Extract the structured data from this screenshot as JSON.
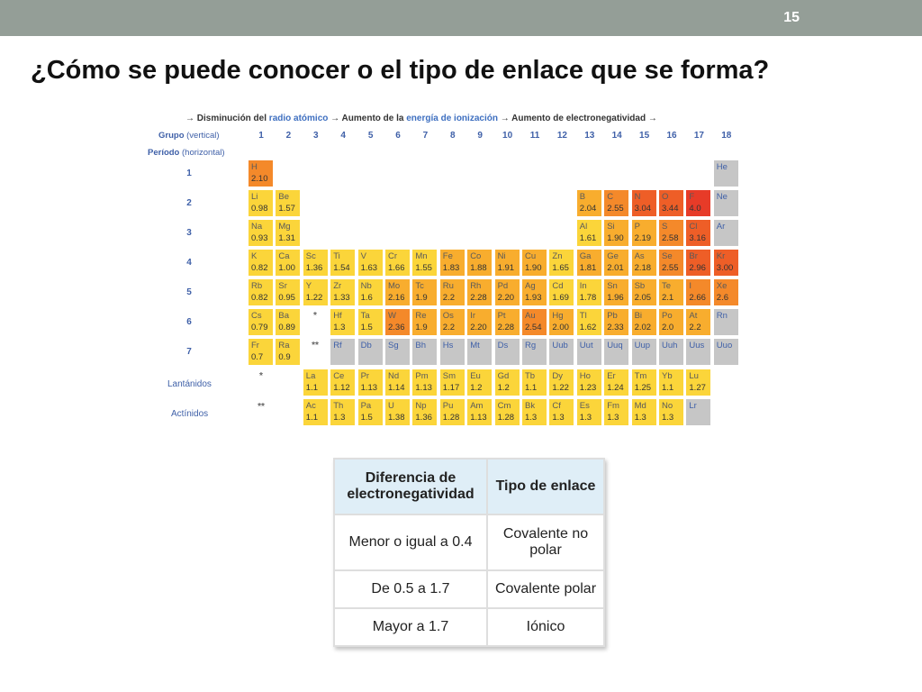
{
  "slide": {
    "number": "15",
    "title": "¿Cómo se puede conocer o el tipo de enlace que se forma?"
  },
  "periodic_table": {
    "header": {
      "a1": "→ Disminución del ",
      "a2": "radio atómico",
      "a3": " → Aumento de la ",
      "a4": "energía de ionización",
      "a5": " → Aumento de electronegatividad →"
    },
    "grupo_label": "Grupo",
    "grupo_note": "(vertical)",
    "periodo_label": "Período",
    "periodo_note": "(horizontal)",
    "groups": [
      "1",
      "2",
      "3",
      "4",
      "5",
      "6",
      "7",
      "8",
      "9",
      "10",
      "11",
      "12",
      "13",
      "14",
      "15",
      "16",
      "17",
      "18"
    ],
    "periods": [
      "1",
      "2",
      "3",
      "4",
      "5",
      "6",
      "7"
    ],
    "lanthanides_label": "Lantánidos",
    "actinides_label": "Actínidos",
    "star_single": "*",
    "star_double": "**",
    "colors": {
      "yellow": "#fbd53a",
      "light_orange": "#f8ad2e",
      "orange": "#f4892a",
      "dark_orange": "#ee5e27",
      "red": "#e73b28",
      "gray": "#c6c6c6"
    },
    "elements": [
      {
        "s": "H",
        "v": "2.10",
        "g": 1,
        "p": 1,
        "c": "orange"
      },
      {
        "s": "He",
        "v": "",
        "g": 18,
        "p": 1,
        "c": "gray"
      },
      {
        "s": "Li",
        "v": "0.98",
        "g": 1,
        "p": 2,
        "c": "yellow"
      },
      {
        "s": "Be",
        "v": "1.57",
        "g": 2,
        "p": 2,
        "c": "yellow"
      },
      {
        "s": "B",
        "v": "2.04",
        "g": 13,
        "p": 2,
        "c": "light_orange"
      },
      {
        "s": "C",
        "v": "2.55",
        "g": 14,
        "p": 2,
        "c": "orange"
      },
      {
        "s": "N",
        "v": "3.04",
        "g": 15,
        "p": 2,
        "c": "dark_orange"
      },
      {
        "s": "O",
        "v": "3.44",
        "g": 16,
        "p": 2,
        "c": "dark_orange"
      },
      {
        "s": "F",
        "v": "4.0",
        "g": 17,
        "p": 2,
        "c": "red"
      },
      {
        "s": "Ne",
        "v": "",
        "g": 18,
        "p": 2,
        "c": "gray"
      },
      {
        "s": "Na",
        "v": "0.93",
        "g": 1,
        "p": 3,
        "c": "yellow"
      },
      {
        "s": "Mg",
        "v": "1.31",
        "g": 2,
        "p": 3,
        "c": "yellow"
      },
      {
        "s": "Al",
        "v": "1.61",
        "g": 13,
        "p": 3,
        "c": "yellow"
      },
      {
        "s": "Si",
        "v": "1.90",
        "g": 14,
        "p": 3,
        "c": "light_orange"
      },
      {
        "s": "P",
        "v": "2.19",
        "g": 15,
        "p": 3,
        "c": "light_orange"
      },
      {
        "s": "S",
        "v": "2.58",
        "g": 16,
        "p": 3,
        "c": "orange"
      },
      {
        "s": "Cl",
        "v": "3.16",
        "g": 17,
        "p": 3,
        "c": "dark_orange"
      },
      {
        "s": "Ar",
        "v": "",
        "g": 18,
        "p": 3,
        "c": "gray"
      },
      {
        "s": "K",
        "v": "0.82",
        "g": 1,
        "p": 4,
        "c": "yellow"
      },
      {
        "s": "Ca",
        "v": "1.00",
        "g": 2,
        "p": 4,
        "c": "yellow"
      },
      {
        "s": "Sc",
        "v": "1.36",
        "g": 3,
        "p": 4,
        "c": "yellow"
      },
      {
        "s": "Ti",
        "v": "1.54",
        "g": 4,
        "p": 4,
        "c": "yellow"
      },
      {
        "s": "V",
        "v": "1.63",
        "g": 5,
        "p": 4,
        "c": "yellow"
      },
      {
        "s": "Cr",
        "v": "1.66",
        "g": 6,
        "p": 4,
        "c": "yellow"
      },
      {
        "s": "Mn",
        "v": "1.55",
        "g": 7,
        "p": 4,
        "c": "yellow"
      },
      {
        "s": "Fe",
        "v": "1.83",
        "g": 8,
        "p": 4,
        "c": "light_orange"
      },
      {
        "s": "Co",
        "v": "1.88",
        "g": 9,
        "p": 4,
        "c": "light_orange"
      },
      {
        "s": "Ni",
        "v": "1.91",
        "g": 10,
        "p": 4,
        "c": "light_orange"
      },
      {
        "s": "Cu",
        "v": "1.90",
        "g": 11,
        "p": 4,
        "c": "light_orange"
      },
      {
        "s": "Zn",
        "v": "1.65",
        "g": 12,
        "p": 4,
        "c": "yellow"
      },
      {
        "s": "Ga",
        "v": "1.81",
        "g": 13,
        "p": 4,
        "c": "light_orange"
      },
      {
        "s": "Ge",
        "v": "2.01",
        "g": 14,
        "p": 4,
        "c": "light_orange"
      },
      {
        "s": "As",
        "v": "2.18",
        "g": 15,
        "p": 4,
        "c": "light_orange"
      },
      {
        "s": "Se",
        "v": "2.55",
        "g": 16,
        "p": 4,
        "c": "orange"
      },
      {
        "s": "Br",
        "v": "2.96",
        "g": 17,
        "p": 4,
        "c": "dark_orange"
      },
      {
        "s": "Kr",
        "v": "3.00",
        "g": 18,
        "p": 4,
        "c": "dark_orange"
      },
      {
        "s": "Rb",
        "v": "0.82",
        "g": 1,
        "p": 5,
        "c": "yellow"
      },
      {
        "s": "Sr",
        "v": "0.95",
        "g": 2,
        "p": 5,
        "c": "yellow"
      },
      {
        "s": "Y",
        "v": "1.22",
        "g": 3,
        "p": 5,
        "c": "yellow"
      },
      {
        "s": "Zr",
        "v": "1.33",
        "g": 4,
        "p": 5,
        "c": "yellow"
      },
      {
        "s": "Nb",
        "v": "1.6",
        "g": 5,
        "p": 5,
        "c": "yellow"
      },
      {
        "s": "Mo",
        "v": "2.16",
        "g": 6,
        "p": 5,
        "c": "light_orange"
      },
      {
        "s": "Tc",
        "v": "1.9",
        "g": 7,
        "p": 5,
        "c": "light_orange"
      },
      {
        "s": "Ru",
        "v": "2.2",
        "g": 8,
        "p": 5,
        "c": "light_orange"
      },
      {
        "s": "Rh",
        "v": "2.28",
        "g": 9,
        "p": 5,
        "c": "light_orange"
      },
      {
        "s": "Pd",
        "v": "2.20",
        "g": 10,
        "p": 5,
        "c": "light_orange"
      },
      {
        "s": "Ag",
        "v": "1.93",
        "g": 11,
        "p": 5,
        "c": "light_orange"
      },
      {
        "s": "Cd",
        "v": "1.69",
        "g": 12,
        "p": 5,
        "c": "yellow"
      },
      {
        "s": "In",
        "v": "1.78",
        "g": 13,
        "p": 5,
        "c": "yellow"
      },
      {
        "s": "Sn",
        "v": "1.96",
        "g": 14,
        "p": 5,
        "c": "light_orange"
      },
      {
        "s": "Sb",
        "v": "2.05",
        "g": 15,
        "p": 5,
        "c": "light_orange"
      },
      {
        "s": "Te",
        "v": "2.1",
        "g": 16,
        "p": 5,
        "c": "light_orange"
      },
      {
        "s": "I",
        "v": "2.66",
        "g": 17,
        "p": 5,
        "c": "orange"
      },
      {
        "s": "Xe",
        "v": "2.6",
        "g": 18,
        "p": 5,
        "c": "orange"
      },
      {
        "s": "Cs",
        "v": "0.79",
        "g": 1,
        "p": 6,
        "c": "yellow"
      },
      {
        "s": "Ba",
        "v": "0.89",
        "g": 2,
        "p": 6,
        "c": "yellow"
      },
      {
        "s": "Hf",
        "v": "1.3",
        "g": 4,
        "p": 6,
        "c": "yellow"
      },
      {
        "s": "Ta",
        "v": "1.5",
        "g": 5,
        "p": 6,
        "c": "yellow"
      },
      {
        "s": "W",
        "v": "2.36",
        "g": 6,
        "p": 6,
        "c": "orange"
      },
      {
        "s": "Re",
        "v": "1.9",
        "g": 7,
        "p": 6,
        "c": "light_orange"
      },
      {
        "s": "Os",
        "v": "2.2",
        "g": 8,
        "p": 6,
        "c": "light_orange"
      },
      {
        "s": "Ir",
        "v": "2.20",
        "g": 9,
        "p": 6,
        "c": "light_orange"
      },
      {
        "s": "Pt",
        "v": "2.28",
        "g": 10,
        "p": 6,
        "c": "light_orange"
      },
      {
        "s": "Au",
        "v": "2.54",
        "g": 11,
        "p": 6,
        "c": "orange"
      },
      {
        "s": "Hg",
        "v": "2.00",
        "g": 12,
        "p": 6,
        "c": "light_orange"
      },
      {
        "s": "Tl",
        "v": "1.62",
        "g": 13,
        "p": 6,
        "c": "yellow"
      },
      {
        "s": "Pb",
        "v": "2.33",
        "g": 14,
        "p": 6,
        "c": "light_orange"
      },
      {
        "s": "Bi",
        "v": "2.02",
        "g": 15,
        "p": 6,
        "c": "light_orange"
      },
      {
        "s": "Po",
        "v": "2.0",
        "g": 16,
        "p": 6,
        "c": "light_orange"
      },
      {
        "s": "At",
        "v": "2.2",
        "g": 17,
        "p": 6,
        "c": "light_orange"
      },
      {
        "s": "Rn",
        "v": "",
        "g": 18,
        "p": 6,
        "c": "gray"
      },
      {
        "s": "Fr",
        "v": "0.7",
        "g": 1,
        "p": 7,
        "c": "yellow"
      },
      {
        "s": "Ra",
        "v": "0.9",
        "g": 2,
        "p": 7,
        "c": "yellow"
      },
      {
        "s": "Rf",
        "v": "",
        "g": 4,
        "p": 7,
        "c": "gray"
      },
      {
        "s": "Db",
        "v": "",
        "g": 5,
        "p": 7,
        "c": "gray"
      },
      {
        "s": "Sg",
        "v": "",
        "g": 6,
        "p": 7,
        "c": "gray"
      },
      {
        "s": "Bh",
        "v": "",
        "g": 7,
        "p": 7,
        "c": "gray"
      },
      {
        "s": "Hs",
        "v": "",
        "g": 8,
        "p": 7,
        "c": "gray"
      },
      {
        "s": "Mt",
        "v": "",
        "g": 9,
        "p": 7,
        "c": "gray"
      },
      {
        "s": "Ds",
        "v": "",
        "g": 10,
        "p": 7,
        "c": "gray"
      },
      {
        "s": "Rg",
        "v": "",
        "g": 11,
        "p": 7,
        "c": "gray"
      },
      {
        "s": "Uub",
        "v": "",
        "g": 12,
        "p": 7,
        "c": "gray"
      },
      {
        "s": "Uut",
        "v": "",
        "g": 13,
        "p": 7,
        "c": "gray"
      },
      {
        "s": "Uuq",
        "v": "",
        "g": 14,
        "p": 7,
        "c": "gray"
      },
      {
        "s": "Uup",
        "v": "",
        "g": 15,
        "p": 7,
        "c": "gray"
      },
      {
        "s": "Uuh",
        "v": "",
        "g": 16,
        "p": 7,
        "c": "gray"
      },
      {
        "s": "Uus",
        "v": "",
        "g": 17,
        "p": 7,
        "c": "gray"
      },
      {
        "s": "Uuo",
        "v": "",
        "g": 18,
        "p": 7,
        "c": "gray"
      },
      {
        "s": "La",
        "v": "1.1",
        "g": 3,
        "p": 8,
        "c": "yellow"
      },
      {
        "s": "Ce",
        "v": "1.12",
        "g": 4,
        "p": 8,
        "c": "yellow"
      },
      {
        "s": "Pr",
        "v": "1.13",
        "g": 5,
        "p": 8,
        "c": "yellow"
      },
      {
        "s": "Nd",
        "v": "1.14",
        "g": 6,
        "p": 8,
        "c": "yellow"
      },
      {
        "s": "Pm",
        "v": "1.13",
        "g": 7,
        "p": 8,
        "c": "yellow"
      },
      {
        "s": "Sm",
        "v": "1.17",
        "g": 8,
        "p": 8,
        "c": "yellow"
      },
      {
        "s": "Eu",
        "v": "1.2",
        "g": 9,
        "p": 8,
        "c": "yellow"
      },
      {
        "s": "Gd",
        "v": "1.2",
        "g": 10,
        "p": 8,
        "c": "yellow"
      },
      {
        "s": "Tb",
        "v": "1.1",
        "g": 11,
        "p": 8,
        "c": "yellow"
      },
      {
        "s": "Dy",
        "v": "1.22",
        "g": 12,
        "p": 8,
        "c": "yellow"
      },
      {
        "s": "Ho",
        "v": "1.23",
        "g": 13,
        "p": 8,
        "c": "yellow"
      },
      {
        "s": "Er",
        "v": "1.24",
        "g": 14,
        "p": 8,
        "c": "yellow"
      },
      {
        "s": "Tm",
        "v": "1.25",
        "g": 15,
        "p": 8,
        "c": "yellow"
      },
      {
        "s": "Yb",
        "v": "1.1",
        "g": 16,
        "p": 8,
        "c": "yellow"
      },
      {
        "s": "Lu",
        "v": "1.27",
        "g": 17,
        "p": 8,
        "c": "yellow"
      },
      {
        "s": "Ac",
        "v": "1.1",
        "g": 3,
        "p": 9,
        "c": "yellow"
      },
      {
        "s": "Th",
        "v": "1.3",
        "g": 4,
        "p": 9,
        "c": "yellow"
      },
      {
        "s": "Pa",
        "v": "1.5",
        "g": 5,
        "p": 9,
        "c": "yellow"
      },
      {
        "s": "U",
        "v": "1.38",
        "g": 6,
        "p": 9,
        "c": "yellow"
      },
      {
        "s": "Np",
        "v": "1.36",
        "g": 7,
        "p": 9,
        "c": "yellow"
      },
      {
        "s": "Pu",
        "v": "1.28",
        "g": 8,
        "p": 9,
        "c": "yellow"
      },
      {
        "s": "Am",
        "v": "1.13",
        "g": 9,
        "p": 9,
        "c": "yellow"
      },
      {
        "s": "Cm",
        "v": "1.28",
        "g": 10,
        "p": 9,
        "c": "yellow"
      },
      {
        "s": "Bk",
        "v": "1.3",
        "g": 11,
        "p": 9,
        "c": "yellow"
      },
      {
        "s": "Cf",
        "v": "1.3",
        "g": 12,
        "p": 9,
        "c": "yellow"
      },
      {
        "s": "Es",
        "v": "1.3",
        "g": 13,
        "p": 9,
        "c": "yellow"
      },
      {
        "s": "Fm",
        "v": "1.3",
        "g": 14,
        "p": 9,
        "c": "yellow"
      },
      {
        "s": "Md",
        "v": "1.3",
        "g": 15,
        "p": 9,
        "c": "yellow"
      },
      {
        "s": "No",
        "v": "1.3",
        "g": 16,
        "p": 9,
        "c": "yellow"
      },
      {
        "s": "Lr",
        "v": "",
        "g": 17,
        "p": 9,
        "c": "gray"
      }
    ]
  },
  "bond_table": {
    "headers": [
      "Diferencia de electronegatividad",
      "Tipo de enlace"
    ],
    "rows": [
      [
        "Menor o igual a 0.4",
        "Covalente no polar"
      ],
      [
        "De 0.5 a 1.7",
        "Covalente polar"
      ],
      [
        "Mayor a 1.7",
        "Iónico"
      ]
    ]
  }
}
